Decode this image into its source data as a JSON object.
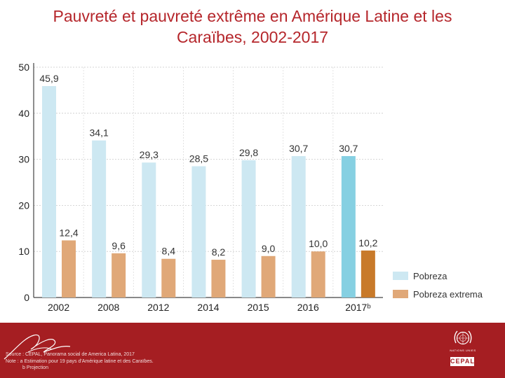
{
  "title": {
    "line1": "Pauvreté et pauvreté extrême en Amérique Latine et les",
    "line2": "Caraïbes, 2002-2017"
  },
  "chart_data": {
    "type": "bar",
    "categories": [
      "2002",
      "2008",
      "2012",
      "2014",
      "2015",
      "2016",
      "2017ᵇ"
    ],
    "series": [
      {
        "name": "Pobreza",
        "values": [
          45.9,
          34.1,
          29.3,
          28.5,
          29.8,
          30.7,
          30.7
        ],
        "labels": [
          "45,9",
          "34,1",
          "29,3",
          "28,5",
          "29,8",
          "30,7",
          "30,7"
        ],
        "color": "#cde8f2",
        "highlight_color": "#86d0e2"
      },
      {
        "name": "Pobreza extrema",
        "values": [
          12.4,
          9.6,
          8.4,
          8.2,
          9.0,
          10.0,
          10.2
        ],
        "labels": [
          "12,4",
          "9,6",
          "8,4",
          "8,2",
          "9,0",
          "10,0",
          "10,2"
        ],
        "color": "#e0a878",
        "highlight_color": "#c87a2a"
      }
    ],
    "yticks": [
      "0",
      "10",
      "20",
      "30",
      "40",
      "50"
    ],
    "ylim": [
      0,
      50
    ],
    "highlight_index": 6,
    "legend_position": "bottom-right",
    "grid": true
  },
  "footer": {
    "source": "Source : CEPAL, Panorama social de America Latina, 2017",
    "note": "Note : a Estimation pour 19 pays d'Amérique latine et des Caraïbes.",
    "projection": "b Projection",
    "un_caption": "NATIONS UNIES",
    "cepal_label": "CEPAL",
    "colors": {
      "bar": "#a51e22",
      "title": "#b5262b"
    }
  }
}
